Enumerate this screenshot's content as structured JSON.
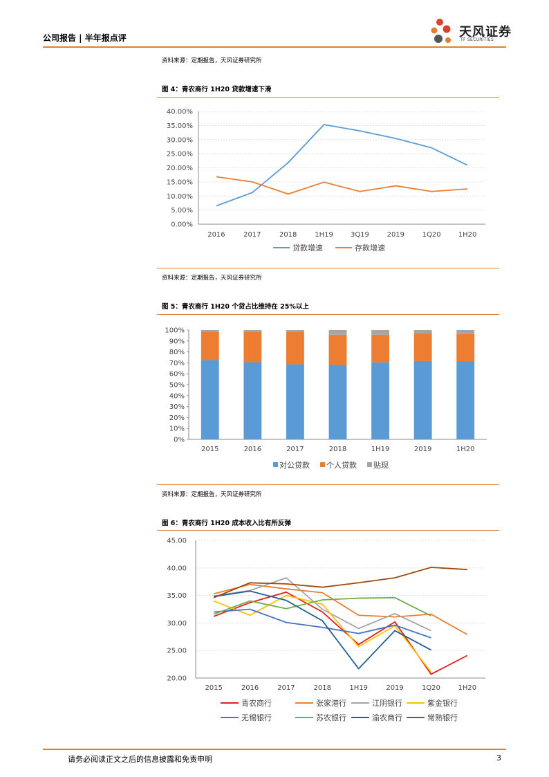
{
  "header": {
    "title": "公司报告 | 半年报点评",
    "logo_cn": "天风证券",
    "logo_en": "TF SECURITIES"
  },
  "source_note": "资料来源：定期报告，天风证券研究所",
  "captions": {
    "fig4": "图 4：青农商行 1H20 贷款增速下滑",
    "fig5": "图 5：青农商行 1H20 个贷占比维持在 25%以上",
    "fig6": "图 6：青农商行 1H20 成本收入比有所反弹"
  },
  "footer": {
    "disclaimer": "请务必阅读正文之后的信息披露和免责申明",
    "page": "3"
  },
  "colors": {
    "accent": "#e07f2d",
    "blue": "#5b9bd5",
    "orange": "#ed7d31",
    "gray": "#a5a5a5"
  },
  "chart_data": [
    {
      "type": "line",
      "title": "青农商行 1H20 贷款增速下滑",
      "categories": [
        "2016",
        "2017",
        "2018",
        "1H19",
        "3Q19",
        "2019",
        "1Q20",
        "1H20"
      ],
      "yticks": [
        "0.00%",
        "5.00%",
        "10.00%",
        "15.00%",
        "20.00%",
        "25.00%",
        "30.00%",
        "35.00%",
        "40.00%"
      ],
      "ylim": [
        0,
        40
      ],
      "series": [
        {
          "name": "贷款增速",
          "color": "#5b9bd5",
          "values": [
            6.5,
            11.2,
            21.8,
            35.3,
            33.1,
            30.4,
            27.1,
            20.9
          ]
        },
        {
          "name": "存款增速",
          "color": "#ed7d31",
          "values": [
            16.8,
            15.0,
            10.7,
            14.9,
            11.6,
            13.6,
            11.6,
            12.5
          ]
        }
      ],
      "legend": "bottom"
    },
    {
      "type": "bar",
      "stacked": true,
      "title": "青农商行 1H20 个贷占比维持在 25%以上",
      "categories": [
        "2015",
        "2016",
        "2017",
        "2018",
        "1H19",
        "2019",
        "1H20"
      ],
      "yticks": [
        "0%",
        "10%",
        "20%",
        "30%",
        "40%",
        "50%",
        "60%",
        "70%",
        "80%",
        "90%",
        "100%"
      ],
      "ylim": [
        0,
        100
      ],
      "series": [
        {
          "name": "对公贷款",
          "color": "#5b9bd5",
          "values": [
            72.5,
            70.6,
            68.7,
            68.0,
            70.5,
            71.6,
            71.2
          ]
        },
        {
          "name": "个人贷款",
          "color": "#ed7d31",
          "values": [
            26.0,
            28.0,
            29.9,
            27.7,
            25.2,
            25.2,
            25.1
          ]
        },
        {
          "name": "贴现",
          "color": "#a5a5a5",
          "values": [
            1.5,
            1.4,
            1.4,
            4.3,
            4.3,
            3.2,
            3.7
          ]
        }
      ],
      "legend": "bottom"
    },
    {
      "type": "line",
      "title": "青农商行 1H20 成本收入比有所反弹",
      "categories": [
        "2015",
        "2016",
        "2017",
        "2018",
        "1H19",
        "2019",
        "1Q20",
        "1H20"
      ],
      "yticks": [
        "20.00",
        "25.00",
        "30.00",
        "35.00",
        "40.00",
        "45.00"
      ],
      "ylim": [
        20,
        45
      ],
      "series": [
        {
          "name": "青农商行",
          "color": "#e02020",
          "values": [
            31.2,
            33.7,
            35.6,
            32.0,
            26.1,
            30.2,
            20.7,
            24.1
          ]
        },
        {
          "name": "张家港行",
          "color": "#ed7d31",
          "values": [
            35.3,
            37.0,
            36.2,
            35.5,
            31.4,
            31.1,
            31.6,
            27.9
          ]
        },
        {
          "name": "江阴银行",
          "color": "#a5a5a5",
          "values": [
            34.9,
            35.9,
            38.2,
            32.5,
            29.0,
            31.7,
            28.6,
            null
          ]
        },
        {
          "name": "紫金银行",
          "color": "#ffc000",
          "values": [
            34.0,
            31.4,
            35.0,
            33.4,
            25.7,
            29.5,
            21.1,
            null
          ]
        },
        {
          "name": "无锡银行",
          "color": "#4472c4",
          "values": [
            32.0,
            32.5,
            30.1,
            29.2,
            28.1,
            29.6,
            27.3,
            null
          ]
        },
        {
          "name": "苏农银行",
          "color": "#70ad47",
          "values": [
            31.6,
            34.0,
            32.6,
            34.2,
            34.5,
            34.6,
            31.3,
            null
          ]
        },
        {
          "name": "渝农商行",
          "color": "#255e91",
          "values": [
            34.8,
            35.8,
            34.1,
            30.4,
            21.7,
            28.6,
            25.1,
            null
          ]
        },
        {
          "name": "常熟银行",
          "color": "#9e480e",
          "values": [
            34.6,
            37.3,
            37.1,
            36.5,
            37.3,
            38.2,
            40.1,
            39.7
          ]
        }
      ],
      "legend": "bottom"
    }
  ]
}
